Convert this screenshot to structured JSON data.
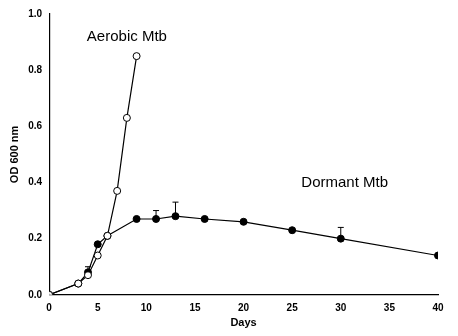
{
  "chart_data": {
    "type": "line",
    "x_label": "Days",
    "y_label": "OD 600 nm",
    "series": [
      {
        "name": "Aerobic Mtb",
        "color": "#000000",
        "marker": "open_circle",
        "line_style": "solid",
        "x": [
          0,
          3,
          4,
          5,
          6,
          7,
          8,
          9
        ],
        "values": [
          0,
          0.04,
          0.07,
          0.14,
          0.21,
          0.37,
          0.63,
          0.85
        ],
        "errors": [
          null,
          null,
          null,
          null,
          null,
          null,
          null,
          null
        ]
      },
      {
        "name": "Dormant Mtb",
        "color": "#000000",
        "marker": "circle",
        "line_style": "solid",
        "x": [
          0,
          3,
          4,
          5,
          6,
          9,
          11,
          13,
          16,
          20,
          25,
          30,
          40
        ],
        "values": [
          0,
          0.04,
          0.08,
          0.18,
          0.21,
          0.27,
          0.27,
          0.28,
          0.27,
          0.26,
          0.23,
          0.2,
          0.14
        ],
        "errors": [
          null,
          null,
          0.02,
          null,
          null,
          null,
          0.03,
          0.05,
          null,
          null,
          null,
          0.04,
          null
        ]
      }
    ],
    "xlim": [
      0,
      40
    ],
    "xticks": [
      0,
      5,
      10,
      15,
      20,
      25,
      30,
      35,
      40
    ],
    "ylim": [
      0,
      1
    ],
    "yticks": [
      {
        "value": 0,
        "label": "0.0"
      },
      0.2,
      0.4,
      0.6,
      0.8,
      {
        "value": 1,
        "label": "1.0"
      }
    ],
    "grid": false
  }
}
